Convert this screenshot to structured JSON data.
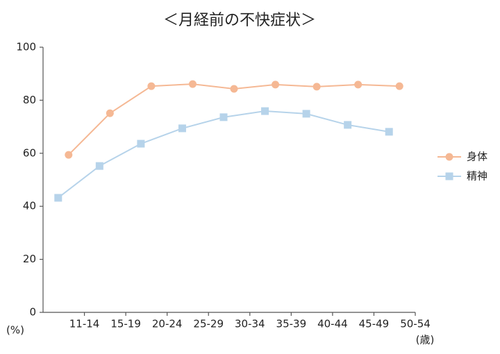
{
  "chart_data": {
    "type": "line",
    "title": "＜月経前の不快症状＞",
    "y_unit": "(%)",
    "x_unit": "(歳)",
    "categories": [
      "11-14",
      "15-19",
      "20-24",
      "25-29",
      "30-34",
      "35-39",
      "40-44",
      "45-49",
      "50-54"
    ],
    "series": [
      {
        "name": "身体",
        "color": "#f5b894",
        "marker": "circle",
        "values": [
          59.4,
          75.1,
          85.3,
          86.1,
          84.3,
          85.9,
          85.1,
          85.9,
          85.3
        ]
      },
      {
        "name": "精神",
        "color": "#b6d3ea",
        "marker": "square",
        "values": [
          43.2,
          55.2,
          63.6,
          69.4,
          73.6,
          75.9,
          74.9,
          70.7,
          68.1
        ]
      }
    ],
    "ylim": [
      0,
      100
    ],
    "yticks": [
      0,
      20,
      40,
      60,
      80,
      100
    ],
    "legend": "right"
  }
}
